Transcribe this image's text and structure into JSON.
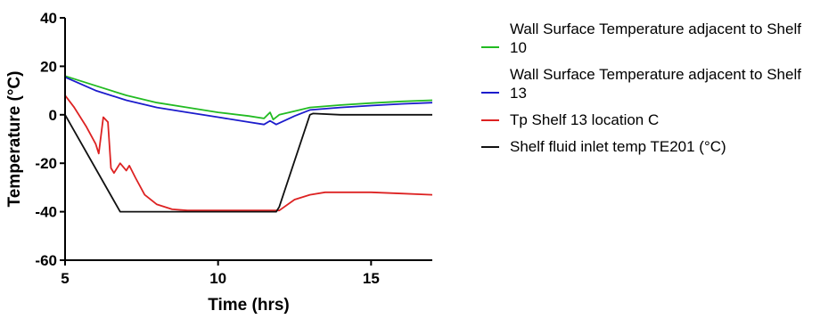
{
  "chart_data": {
    "type": "line",
    "xlabel": "Time (hrs)",
    "ylabel": "Temperature (°C)",
    "xlim": [
      5,
      17
    ],
    "ylim": [
      -60,
      40
    ],
    "xticks": [
      5,
      10,
      15
    ],
    "yticks": [
      -60,
      -40,
      -20,
      0,
      20,
      40
    ],
    "grid": false,
    "legend_position": "right",
    "series": [
      {
        "name": "Wall Surface Temperature adjacent to Shelf 10",
        "color": "#22bb22",
        "x": [
          5,
          6,
          7,
          8,
          9,
          10,
          11,
          11.5,
          11.7,
          11.8,
          12,
          12.5,
          13,
          14,
          15,
          16,
          17
        ],
        "y": [
          16,
          12,
          8,
          5,
          3,
          1,
          -0.5,
          -1.5,
          1,
          -2,
          0,
          1.5,
          3,
          4,
          4.8,
          5.5,
          6
        ]
      },
      {
        "name": "Wall Surface Temperature adjacent to Shelf 13",
        "color": "#1c1ccc",
        "x": [
          5,
          6,
          7,
          8,
          9,
          10,
          11,
          11.5,
          11.7,
          11.9,
          12.5,
          13,
          14,
          15,
          16,
          17
        ],
        "y": [
          15.5,
          10,
          6,
          3,
          1,
          -1,
          -3,
          -4,
          -2.5,
          -4,
          -0.5,
          2,
          3,
          3.8,
          4.5,
          5
        ]
      },
      {
        "name": "Tp Shelf 13 location C",
        "color": "#dd2222",
        "x": [
          5,
          5.3,
          5.7,
          6,
          6.1,
          6.25,
          6.4,
          6.5,
          6.6,
          6.8,
          7.0,
          7.1,
          7.3,
          7.6,
          8,
          8.5,
          9,
          10,
          11,
          12,
          12.5,
          13,
          13.5,
          14,
          15,
          16,
          17
        ],
        "y": [
          8,
          3,
          -5,
          -12,
          -16,
          -1,
          -3,
          -22,
          -24,
          -20,
          -23,
          -21,
          -26,
          -33,
          -37,
          -39,
          -39.5,
          -39.5,
          -39.5,
          -39.5,
          -35,
          -33,
          -32,
          -32,
          -32,
          -32.5,
          -33
        ]
      },
      {
        "name": "Shelf fluid inlet temp TE201 (°C)",
        "color": "#111111",
        "x": [
          5,
          6.8,
          6.9,
          7.5,
          11.9,
          12.0,
          13.0,
          13.1,
          14,
          17
        ],
        "y": [
          0,
          -40,
          -40,
          -40,
          -40,
          -38,
          0,
          0.5,
          0,
          0
        ]
      }
    ]
  }
}
